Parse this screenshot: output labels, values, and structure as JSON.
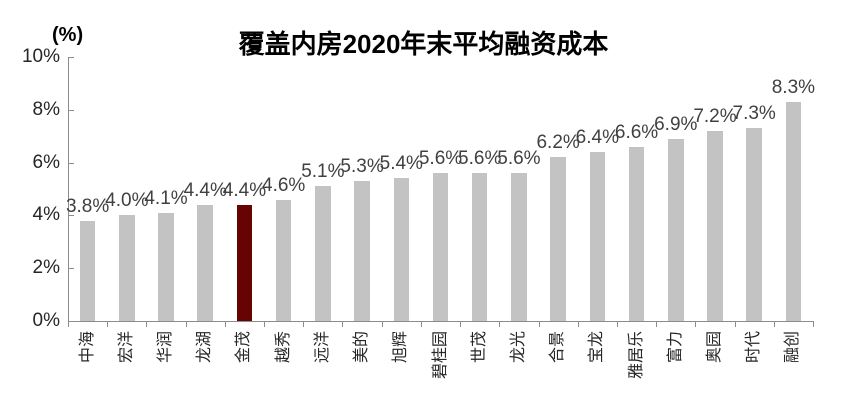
{
  "chart_data": {
    "type": "bar",
    "title": "覆盖内房2020年末平均融资成本",
    "unit_label": "(%)",
    "xlabel": "",
    "ylabel": "(%)",
    "categories": [
      "中海",
      "宏洋",
      "华润",
      "龙湖",
      "金茂",
      "越秀",
      "远洋",
      "美的",
      "旭辉",
      "碧桂园",
      "世茂",
      "龙光",
      "合景",
      "宝龙",
      "雅居乐",
      "富力",
      "奥园",
      "时代",
      "融创"
    ],
    "values": [
      3.8,
      4.0,
      4.1,
      4.4,
      4.4,
      4.6,
      5.1,
      5.3,
      5.4,
      5.6,
      5.6,
      5.6,
      6.2,
      6.4,
      6.6,
      6.9,
      7.2,
      7.3,
      8.3
    ],
    "data_labels": [
      "3.8%",
      "4.0%",
      "4.1%",
      "4.4%",
      "4.4%",
      "4.6%",
      "5.1%",
      "5.3%",
      "5.4%",
      "5.6%",
      "5.6%",
      "5.6%",
      "6.2%",
      "6.4%",
      "6.6%",
      "6.9%",
      "7.2%",
      "7.3%",
      "8.3%"
    ],
    "highlight_index": 4,
    "highlight_category": "金茂",
    "ylim": [
      0,
      10
    ],
    "y_ticks": [
      {
        "label": "0%",
        "value": 0
      },
      {
        "label": "2%",
        "value": 2
      },
      {
        "label": "4%",
        "value": 4
      },
      {
        "label": "6%",
        "value": 6
      },
      {
        "label": "8%",
        "value": 8
      },
      {
        "label": "10%",
        "value": 10
      }
    ],
    "grid": false,
    "legend": null,
    "colors": {
      "bar": "#C3C3C3",
      "highlight": "#660303",
      "axis": "#8C8C8C",
      "text": "#262626",
      "label_text": "#404040",
      "background": "#FFFFFF"
    }
  }
}
